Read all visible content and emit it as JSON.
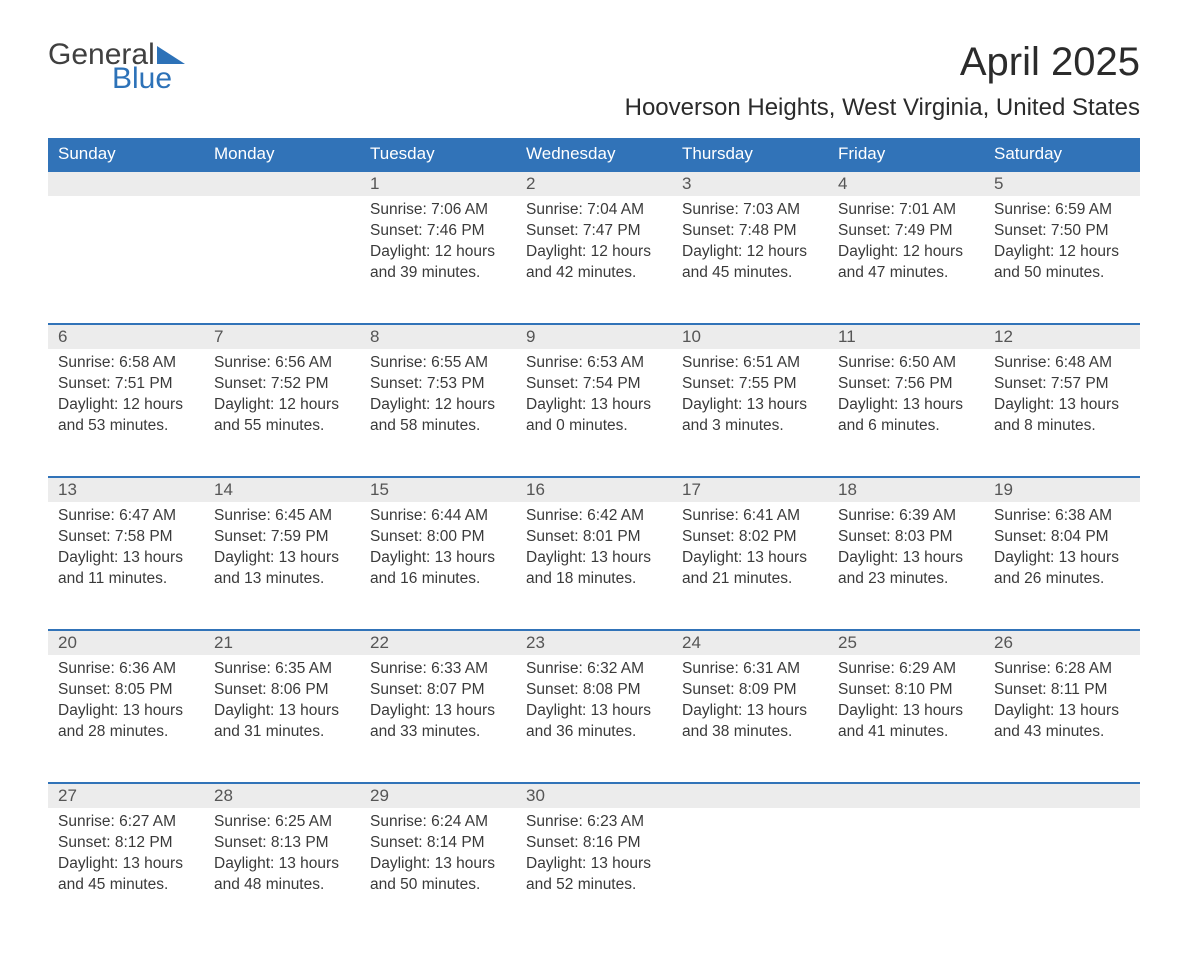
{
  "logo": {
    "text1": "General",
    "text2": "Blue",
    "tri_color": "#2d72b8"
  },
  "title": "April 2025",
  "location": "Hooverson Heights, West Virginia, United States",
  "colors": {
    "header_bg": "#3173b8",
    "header_text": "#ffffff",
    "daynum_bg": "#ececec",
    "row_border": "#3173b8",
    "body_text": "#3a3a3a"
  },
  "day_headers": [
    "Sunday",
    "Monday",
    "Tuesday",
    "Wednesday",
    "Thursday",
    "Friday",
    "Saturday"
  ],
  "weeks": [
    [
      null,
      null,
      {
        "n": "1",
        "sr": "7:06 AM",
        "ss": "7:46 PM",
        "dl": "12 hours and 39 minutes."
      },
      {
        "n": "2",
        "sr": "7:04 AM",
        "ss": "7:47 PM",
        "dl": "12 hours and 42 minutes."
      },
      {
        "n": "3",
        "sr": "7:03 AM",
        "ss": "7:48 PM",
        "dl": "12 hours and 45 minutes."
      },
      {
        "n": "4",
        "sr": "7:01 AM",
        "ss": "7:49 PM",
        "dl": "12 hours and 47 minutes."
      },
      {
        "n": "5",
        "sr": "6:59 AM",
        "ss": "7:50 PM",
        "dl": "12 hours and 50 minutes."
      }
    ],
    [
      {
        "n": "6",
        "sr": "6:58 AM",
        "ss": "7:51 PM",
        "dl": "12 hours and 53 minutes."
      },
      {
        "n": "7",
        "sr": "6:56 AM",
        "ss": "7:52 PM",
        "dl": "12 hours and 55 minutes."
      },
      {
        "n": "8",
        "sr": "6:55 AM",
        "ss": "7:53 PM",
        "dl": "12 hours and 58 minutes."
      },
      {
        "n": "9",
        "sr": "6:53 AM",
        "ss": "7:54 PM",
        "dl": "13 hours and 0 minutes."
      },
      {
        "n": "10",
        "sr": "6:51 AM",
        "ss": "7:55 PM",
        "dl": "13 hours and 3 minutes."
      },
      {
        "n": "11",
        "sr": "6:50 AM",
        "ss": "7:56 PM",
        "dl": "13 hours and 6 minutes."
      },
      {
        "n": "12",
        "sr": "6:48 AM",
        "ss": "7:57 PM",
        "dl": "13 hours and 8 minutes."
      }
    ],
    [
      {
        "n": "13",
        "sr": "6:47 AM",
        "ss": "7:58 PM",
        "dl": "13 hours and 11 minutes."
      },
      {
        "n": "14",
        "sr": "6:45 AM",
        "ss": "7:59 PM",
        "dl": "13 hours and 13 minutes."
      },
      {
        "n": "15",
        "sr": "6:44 AM",
        "ss": "8:00 PM",
        "dl": "13 hours and 16 minutes."
      },
      {
        "n": "16",
        "sr": "6:42 AM",
        "ss": "8:01 PM",
        "dl": "13 hours and 18 minutes."
      },
      {
        "n": "17",
        "sr": "6:41 AM",
        "ss": "8:02 PM",
        "dl": "13 hours and 21 minutes."
      },
      {
        "n": "18",
        "sr": "6:39 AM",
        "ss": "8:03 PM",
        "dl": "13 hours and 23 minutes."
      },
      {
        "n": "19",
        "sr": "6:38 AM",
        "ss": "8:04 PM",
        "dl": "13 hours and 26 minutes."
      }
    ],
    [
      {
        "n": "20",
        "sr": "6:36 AM",
        "ss": "8:05 PM",
        "dl": "13 hours and 28 minutes."
      },
      {
        "n": "21",
        "sr": "6:35 AM",
        "ss": "8:06 PM",
        "dl": "13 hours and 31 minutes."
      },
      {
        "n": "22",
        "sr": "6:33 AM",
        "ss": "8:07 PM",
        "dl": "13 hours and 33 minutes."
      },
      {
        "n": "23",
        "sr": "6:32 AM",
        "ss": "8:08 PM",
        "dl": "13 hours and 36 minutes."
      },
      {
        "n": "24",
        "sr": "6:31 AM",
        "ss": "8:09 PM",
        "dl": "13 hours and 38 minutes."
      },
      {
        "n": "25",
        "sr": "6:29 AM",
        "ss": "8:10 PM",
        "dl": "13 hours and 41 minutes."
      },
      {
        "n": "26",
        "sr": "6:28 AM",
        "ss": "8:11 PM",
        "dl": "13 hours and 43 minutes."
      }
    ],
    [
      {
        "n": "27",
        "sr": "6:27 AM",
        "ss": "8:12 PM",
        "dl": "13 hours and 45 minutes."
      },
      {
        "n": "28",
        "sr": "6:25 AM",
        "ss": "8:13 PM",
        "dl": "13 hours and 48 minutes."
      },
      {
        "n": "29",
        "sr": "6:24 AM",
        "ss": "8:14 PM",
        "dl": "13 hours and 50 minutes."
      },
      {
        "n": "30",
        "sr": "6:23 AM",
        "ss": "8:16 PM",
        "dl": "13 hours and 52 minutes."
      },
      null,
      null,
      null
    ]
  ],
  "labels": {
    "sunrise": "Sunrise: ",
    "sunset": "Sunset: ",
    "daylight": "Daylight: "
  }
}
